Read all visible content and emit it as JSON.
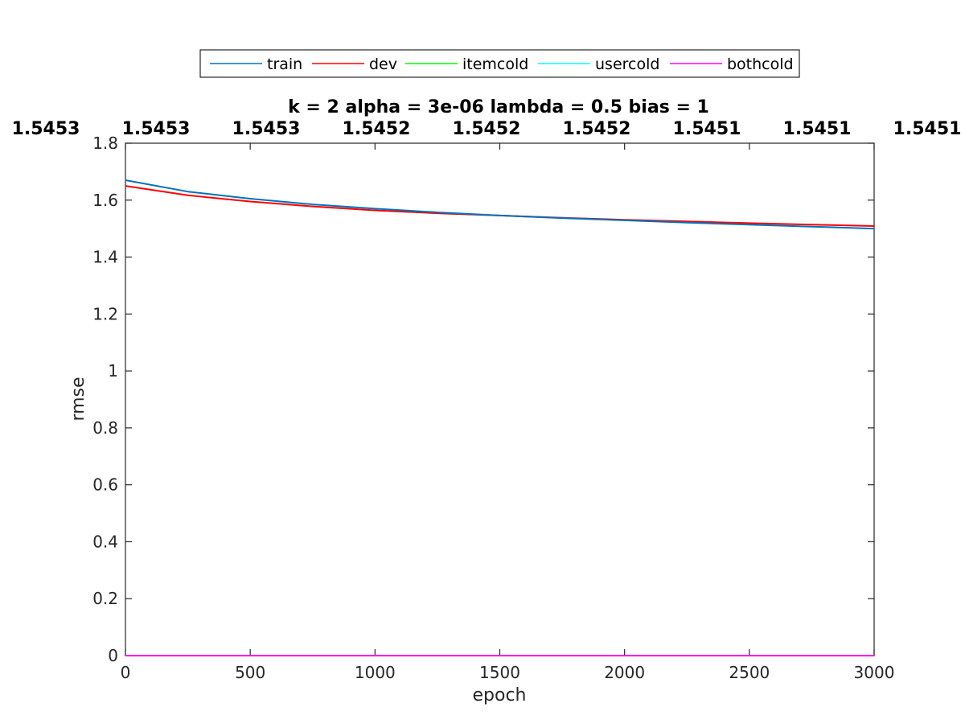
{
  "chart_data": {
    "type": "line",
    "title": "k = 2 alpha = 3e-06 lambda = 0.5 bias = 1",
    "xlabel": "epoch",
    "ylabel": "rmse",
    "xlim": [
      0,
      3000
    ],
    "ylim": [
      0,
      1.8
    ],
    "x_ticks": [
      0,
      500,
      1000,
      1500,
      2000,
      2500,
      3000
    ],
    "y_ticks": [
      0,
      0.2,
      0.4,
      0.6,
      0.8,
      1,
      1.2,
      1.4,
      1.6,
      1.8
    ],
    "x_tick_labels": [
      "0",
      "500",
      "1000",
      "1500",
      "2000",
      "2500",
      "3000"
    ],
    "y_tick_labels": [
      "0",
      "0.2",
      "0.4",
      "0.6",
      "0.8",
      "1",
      "1.2",
      "1.4",
      "1.6",
      "1.8"
    ],
    "top_labels": [
      "1.5453",
      "1.5453",
      "1.5453",
      "1.5452",
      "1.5452",
      "1.5452",
      "1.5451",
      "1.5451",
      "1.5451"
    ],
    "grid": false,
    "legend_position": "top-center, outside, horizontal",
    "series": [
      {
        "name": "train",
        "color": "#0072BD",
        "x": [
          0,
          250,
          500,
          750,
          1000,
          1250,
          1500,
          1750,
          2000,
          2250,
          2500,
          2750,
          3000
        ],
        "values": [
          1.67,
          1.63,
          1.605,
          1.585,
          1.57,
          1.557,
          1.546,
          1.537,
          1.529,
          1.521,
          1.514,
          1.507,
          1.5
        ]
      },
      {
        "name": "dev",
        "color": "#FF0000",
        "x": [
          0,
          250,
          500,
          750,
          1000,
          1250,
          1500,
          1750,
          2000,
          2250,
          2500,
          2750,
          3000
        ],
        "values": [
          1.65,
          1.617,
          1.595,
          1.578,
          1.564,
          1.554,
          1.546,
          1.538,
          1.531,
          1.525,
          1.519,
          1.514,
          1.509
        ]
      },
      {
        "name": "itemcold",
        "color": "#00FF00",
        "x": [
          0,
          3000
        ],
        "values": [
          0,
          0
        ]
      },
      {
        "name": "usercold",
        "color": "#00FFFF",
        "x": [
          0,
          3000
        ],
        "values": [
          0,
          0
        ]
      },
      {
        "name": "bothcold",
        "color": "#FF00FF",
        "x": [
          0,
          3000
        ],
        "values": [
          0,
          0
        ]
      }
    ]
  }
}
